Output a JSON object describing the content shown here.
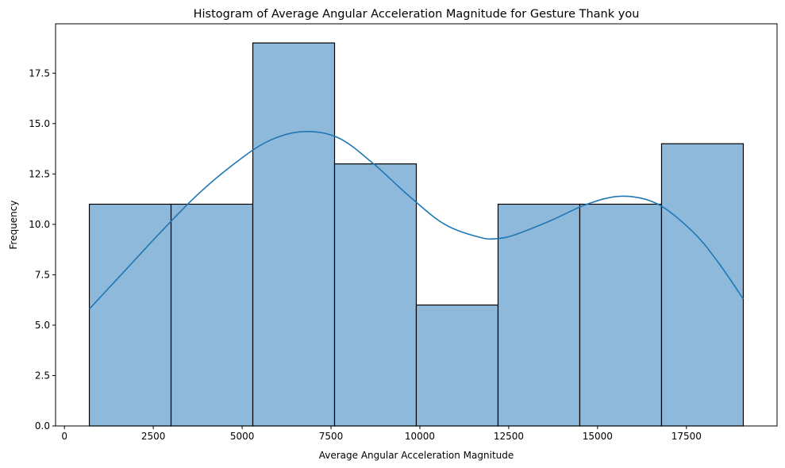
{
  "chart_data": {
    "type": "bar",
    "subtype": "histogram_with_kde",
    "title": "Histogram of Average Angular Acceleration Magnitude for Gesture Thank you",
    "xlabel": "Average Angular Acceleration Magnitude",
    "ylabel": "Frequency",
    "xlim": [
      -250,
      20050
    ],
    "ylim": [
      0,
      19.95
    ],
    "x_ticks": [
      0,
      2500,
      5000,
      7500,
      10000,
      12500,
      15000,
      17500
    ],
    "y_ticks": [
      0.0,
      2.5,
      5.0,
      7.5,
      10.0,
      12.5,
      15.0,
      17.5
    ],
    "bins": [
      {
        "start": 700,
        "end": 3000,
        "count": 11
      },
      {
        "start": 3000,
        "end": 5300,
        "count": 11
      },
      {
        "start": 5300,
        "end": 7600,
        "count": 19
      },
      {
        "start": 7600,
        "end": 9900,
        "count": 13
      },
      {
        "start": 9900,
        "end": 12200,
        "count": 6
      },
      {
        "start": 12200,
        "end": 14500,
        "count": 11
      },
      {
        "start": 14500,
        "end": 16800,
        "count": 11
      },
      {
        "start": 16800,
        "end": 19100,
        "count": 14
      }
    ],
    "kde": {
      "x": [
        700,
        1700,
        2700,
        3700,
        4700,
        5700,
        6700,
        7700,
        8700,
        9700,
        10700,
        11700,
        12200,
        12700,
        13700,
        14700,
        15700,
        16700,
        17700,
        18400,
        19100
      ],
      "y": [
        5.8,
        7.7,
        9.6,
        11.4,
        12.9,
        14.1,
        14.6,
        14.3,
        13.0,
        11.4,
        10.0,
        9.35,
        9.3,
        9.5,
        10.2,
        11.0,
        11.4,
        11.0,
        9.6,
        8.1,
        6.3
      ]
    },
    "colors": {
      "bar_fill": "#8fb9da",
      "bar_edge": "#000000",
      "kde_line": "#1f77b4"
    },
    "grid": false,
    "legend": "none"
  }
}
